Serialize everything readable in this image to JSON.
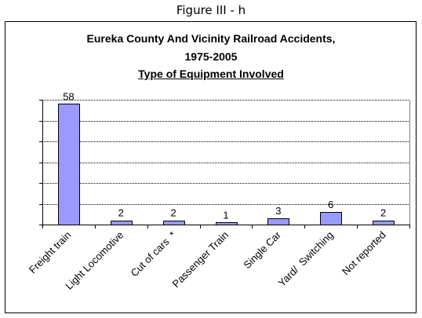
{
  "figure_label": "Figure III - h",
  "chart_data": {
    "type": "bar",
    "title_lines": [
      "Eureka County And Vicinity Railroad Accidents,",
      "1975-2005",
      "Type of Equipment Involved"
    ],
    "categories": [
      "Freight train",
      "Light Locomotive",
      "Cut of cars  *",
      "Passenger Train",
      "Single Car",
      "Yard/  Switching",
      "Not reported"
    ],
    "values": [
      58,
      2,
      2,
      1,
      3,
      6,
      2
    ],
    "data_labels": [
      "58",
      "2",
      "2",
      "1",
      "3",
      "6",
      "2"
    ],
    "ylim": [
      0,
      60
    ],
    "grid": true,
    "legend": "none",
    "colors": {
      "bar_fill": "#9999ff",
      "bar_stroke": "#000000",
      "gridline": "#000000",
      "axis": "#000000"
    }
  }
}
